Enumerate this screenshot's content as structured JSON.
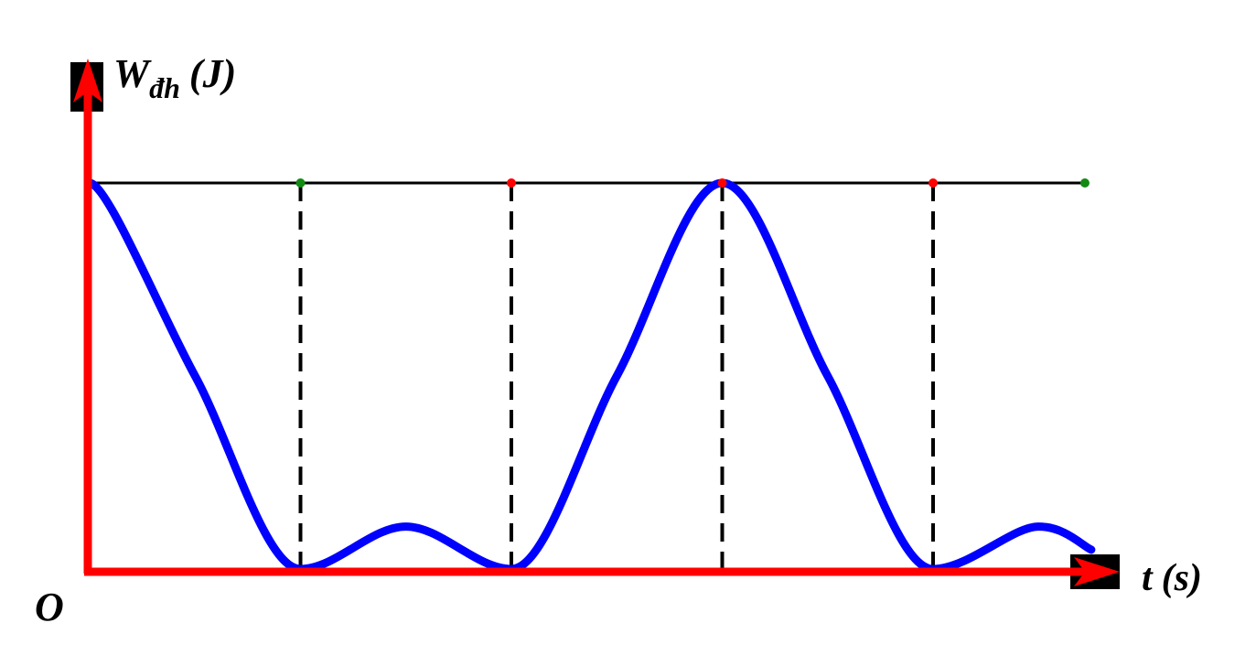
{
  "chart_data": {
    "type": "line",
    "title": "",
    "ylabel_main": "W",
    "ylabel_sub": "đh",
    "ylabel_unit": "(J)",
    "xlabel_main": "t",
    "xlabel_unit": "(s)",
    "origin_label": "O",
    "xlim": [
      0,
      4.75
    ],
    "ylim": [
      0,
      1
    ],
    "grid": false,
    "reference_level": 1,
    "vertical_markers": [
      1,
      2,
      3,
      4
    ],
    "level_dots": [
      {
        "x": 1,
        "color": "#138a13"
      },
      {
        "x": 2,
        "color": "#ff0000"
      },
      {
        "x": 3,
        "color": "#ff0000"
      },
      {
        "x": 4,
        "color": "#ff0000"
      },
      {
        "x": 4.72,
        "color": "#138a13"
      }
    ],
    "series": [
      {
        "color": "#0000ff",
        "x": [
          0,
          0.5,
          1,
          1.5,
          2,
          2.5,
          3,
          3.5,
          4,
          4.5,
          4.75
        ],
        "y": [
          1,
          0.5,
          0,
          0.11,
          0,
          0.5,
          1,
          0.5,
          0,
          0.11,
          0.05
        ]
      }
    ],
    "colors": {
      "axes": "#ff0000",
      "curve": "#0000ff",
      "reference": "#000000",
      "arrow_box": "#000000"
    }
  }
}
